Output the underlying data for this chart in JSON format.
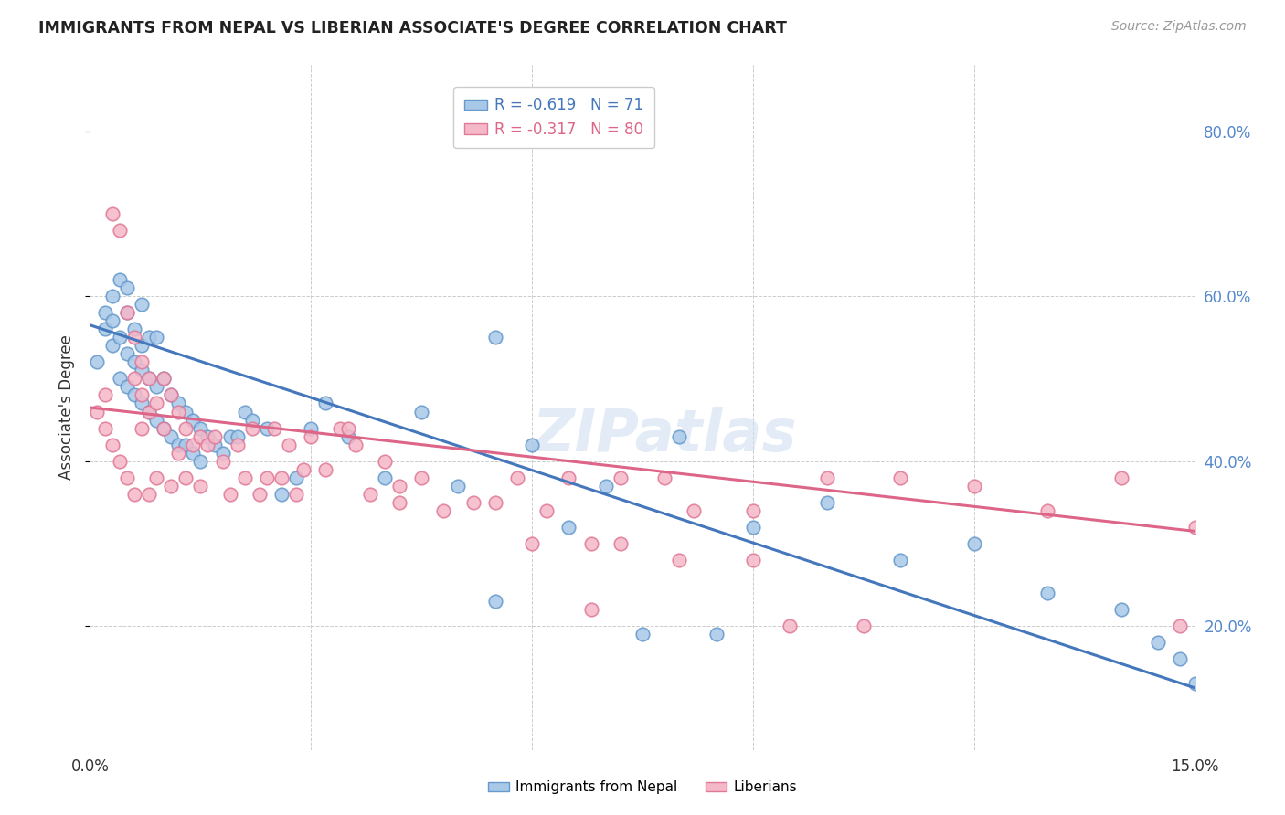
{
  "title": "IMMIGRANTS FROM NEPAL VS LIBERIAN ASSOCIATE'S DEGREE CORRELATION CHART",
  "source": "Source: ZipAtlas.com",
  "ylabel": "Associate's Degree",
  "xlim": [
    0.0,
    0.15
  ],
  "ylim": [
    0.05,
    0.88
  ],
  "yticks": [
    0.2,
    0.4,
    0.6,
    0.8
  ],
  "xtick_positions": [
    0.0,
    0.03,
    0.06,
    0.09,
    0.12,
    0.15
  ],
  "xtick_labels": [
    "0.0%",
    "",
    "",
    "",
    "",
    "15.0%"
  ],
  "nepal_color": "#a8c8e8",
  "nepal_edge_color": "#6699cc",
  "liberia_color": "#f5b8c8",
  "liberia_edge_color": "#e07898",
  "nepal_line_color": "#4477bb",
  "liberia_line_color": "#dd6688",
  "nepal_R": -0.619,
  "nepal_N": 71,
  "liberia_R": -0.317,
  "liberia_N": 80,
  "nepal_line_x0": 0.0,
  "nepal_line_y0": 0.565,
  "nepal_line_x1": 0.15,
  "nepal_line_y1": 0.125,
  "liberia_line_x0": 0.0,
  "liberia_line_y0": 0.465,
  "liberia_line_x1": 0.15,
  "liberia_line_y1": 0.315,
  "background_color": "#ffffff",
  "grid_color": "#cccccc",
  "watermark": "ZIPatlas",
  "right_label_color": "#5588cc",
  "nepal_x": [
    0.001,
    0.002,
    0.002,
    0.003,
    0.003,
    0.003,
    0.004,
    0.004,
    0.004,
    0.005,
    0.005,
    0.005,
    0.005,
    0.006,
    0.006,
    0.006,
    0.007,
    0.007,
    0.007,
    0.007,
    0.008,
    0.008,
    0.008,
    0.009,
    0.009,
    0.009,
    0.01,
    0.01,
    0.011,
    0.011,
    0.012,
    0.012,
    0.013,
    0.013,
    0.014,
    0.014,
    0.015,
    0.015,
    0.016,
    0.017,
    0.018,
    0.019,
    0.02,
    0.021,
    0.022,
    0.024,
    0.026,
    0.028,
    0.03,
    0.032,
    0.035,
    0.04,
    0.045,
    0.05,
    0.055,
    0.06,
    0.065,
    0.07,
    0.08,
    0.09,
    0.1,
    0.11,
    0.12,
    0.13,
    0.14,
    0.145,
    0.148,
    0.15,
    0.055,
    0.075,
    0.085
  ],
  "nepal_y": [
    0.52,
    0.56,
    0.58,
    0.54,
    0.6,
    0.57,
    0.5,
    0.55,
    0.62,
    0.49,
    0.53,
    0.58,
    0.61,
    0.48,
    0.52,
    0.56,
    0.47,
    0.51,
    0.54,
    0.59,
    0.46,
    0.5,
    0.55,
    0.45,
    0.49,
    0.55,
    0.44,
    0.5,
    0.43,
    0.48,
    0.42,
    0.47,
    0.42,
    0.46,
    0.41,
    0.45,
    0.4,
    0.44,
    0.43,
    0.42,
    0.41,
    0.43,
    0.43,
    0.46,
    0.45,
    0.44,
    0.36,
    0.38,
    0.44,
    0.47,
    0.43,
    0.38,
    0.46,
    0.37,
    0.55,
    0.42,
    0.32,
    0.37,
    0.43,
    0.32,
    0.35,
    0.28,
    0.3,
    0.24,
    0.22,
    0.18,
    0.16,
    0.13,
    0.23,
    0.19,
    0.19
  ],
  "liberia_x": [
    0.001,
    0.002,
    0.002,
    0.003,
    0.003,
    0.004,
    0.004,
    0.005,
    0.005,
    0.006,
    0.006,
    0.006,
    0.007,
    0.007,
    0.007,
    0.008,
    0.008,
    0.008,
    0.009,
    0.009,
    0.01,
    0.01,
    0.011,
    0.011,
    0.012,
    0.012,
    0.013,
    0.013,
    0.014,
    0.015,
    0.015,
    0.016,
    0.017,
    0.018,
    0.019,
    0.02,
    0.021,
    0.022,
    0.023,
    0.024,
    0.025,
    0.026,
    0.027,
    0.028,
    0.029,
    0.03,
    0.032,
    0.034,
    0.036,
    0.04,
    0.042,
    0.045,
    0.048,
    0.052,
    0.058,
    0.062,
    0.068,
    0.072,
    0.078,
    0.082,
    0.09,
    0.1,
    0.11,
    0.12,
    0.13,
    0.14,
    0.148,
    0.15,
    0.035,
    0.038,
    0.042,
    0.055,
    0.06,
    0.065,
    0.068,
    0.072,
    0.08,
    0.09,
    0.095,
    0.105
  ],
  "liberia_y": [
    0.46,
    0.44,
    0.48,
    0.7,
    0.42,
    0.68,
    0.4,
    0.58,
    0.38,
    0.55,
    0.5,
    0.36,
    0.52,
    0.48,
    0.44,
    0.5,
    0.46,
    0.36,
    0.47,
    0.38,
    0.5,
    0.44,
    0.48,
    0.37,
    0.46,
    0.41,
    0.44,
    0.38,
    0.42,
    0.43,
    0.37,
    0.42,
    0.43,
    0.4,
    0.36,
    0.42,
    0.38,
    0.44,
    0.36,
    0.38,
    0.44,
    0.38,
    0.42,
    0.36,
    0.39,
    0.43,
    0.39,
    0.44,
    0.42,
    0.4,
    0.35,
    0.38,
    0.34,
    0.35,
    0.38,
    0.34,
    0.3,
    0.38,
    0.38,
    0.34,
    0.28,
    0.38,
    0.38,
    0.37,
    0.34,
    0.38,
    0.2,
    0.32,
    0.44,
    0.36,
    0.37,
    0.35,
    0.3,
    0.38,
    0.22,
    0.3,
    0.28,
    0.34,
    0.2,
    0.2
  ]
}
